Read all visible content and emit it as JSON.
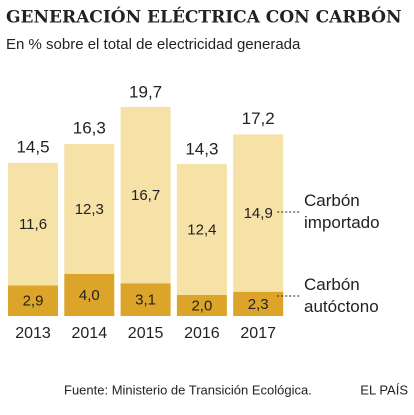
{
  "chart_data": {
    "type": "stacked_bar",
    "title": "GENERACIÓN ELÉCTRICA CON CARBÓN",
    "subtitle": "En % sobre el total de electricidad generada",
    "categories": [
      "2013",
      "2014",
      "2015",
      "2016",
      "2017"
    ],
    "series": [
      {
        "name": "Carbón autóctono",
        "color": "#dca52a",
        "values": [
          2.9,
          4.0,
          3.1,
          2.0,
          2.3
        ],
        "value_labels": [
          "2,9",
          "4,0",
          "3,1",
          "2,0",
          "2,3"
        ]
      },
      {
        "name": "Carbón importado",
        "color": "#f6e2a6",
        "values": [
          11.6,
          12.3,
          16.7,
          12.4,
          14.9
        ],
        "value_labels": [
          "11,6",
          "12,3",
          "16,7",
          "12,4",
          "14,9"
        ]
      }
    ],
    "totals": [
      14.5,
      16.3,
      19.7,
      14.3,
      17.2
    ],
    "total_labels": [
      "14,5",
      "16,3",
      "19,7",
      "14,3",
      "17,2"
    ],
    "source": "Fuente: Ministerio de Transición Ecológica.",
    "credit": "EL PAÍS"
  }
}
